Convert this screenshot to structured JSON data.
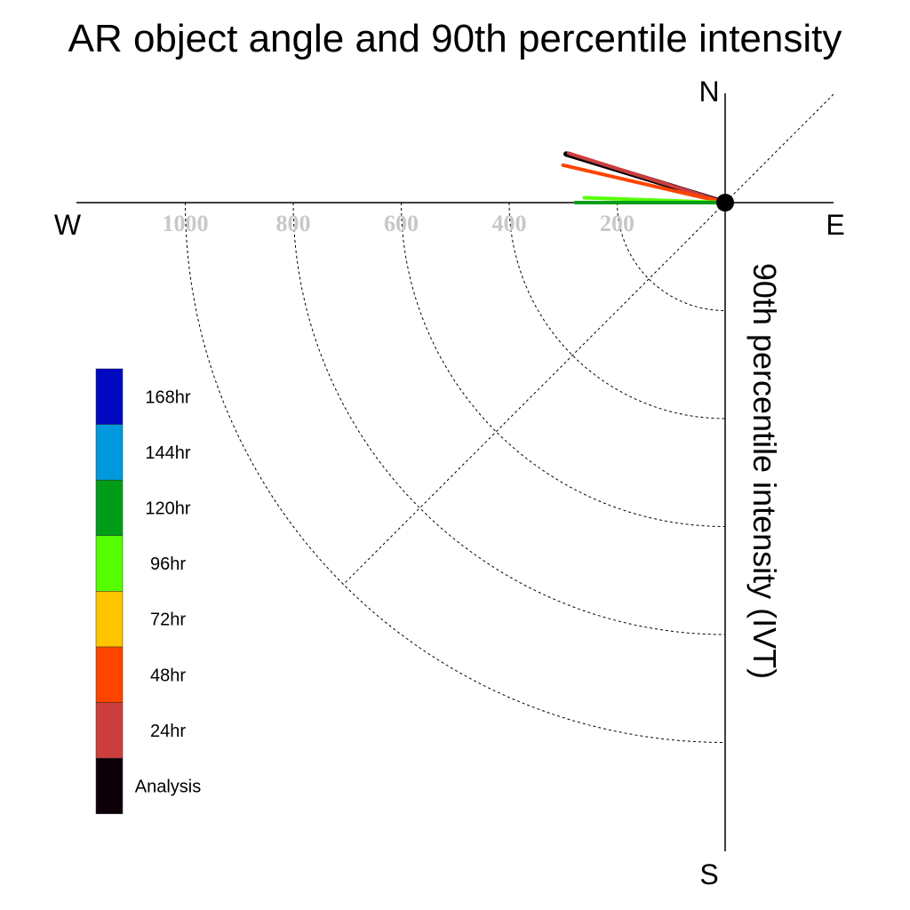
{
  "chart_data": {
    "type": "polar-vector",
    "title": "AR object angle and 90th percentile intensity",
    "radial_label": "90th percentile intensity (IVT)",
    "compass": {
      "north": "N",
      "south": "S",
      "east": "E",
      "west": "W"
    },
    "radial_ticks": [
      200,
      400,
      600,
      800,
      1000
    ],
    "series": [
      {
        "name": "Analysis",
        "color": "#0d0008",
        "angle_deg": 163,
        "magnitude": 395
      },
      {
        "name": "24hr",
        "color": "#cc3e3e",
        "angle_deg": 162.5,
        "magnitude": 390
      },
      {
        "name": "48hr",
        "color": "#ff4400",
        "angle_deg": 167,
        "magnitude": 395
      },
      {
        "name": "96hr",
        "color": "#55ff00",
        "angle_deg": 178,
        "magnitude": 335
      },
      {
        "name": "120hr",
        "color": "#009d18",
        "angle_deg": 180,
        "magnitude": 355
      }
    ],
    "legend": [
      {
        "label": "168hr",
        "color": "#0008c2"
      },
      {
        "label": "144hr",
        "color": "#0099dd"
      },
      {
        "label": "120hr",
        "color": "#009d18"
      },
      {
        "label": "96hr",
        "color": "#55ff00"
      },
      {
        "label": "72hr",
        "color": "#ffc400"
      },
      {
        "label": "48hr",
        "color": "#ff4400"
      },
      {
        "label": "24hr",
        "color": "#cc3e3e"
      },
      {
        "label": "Analysis",
        "color": "#0d0008"
      }
    ]
  }
}
